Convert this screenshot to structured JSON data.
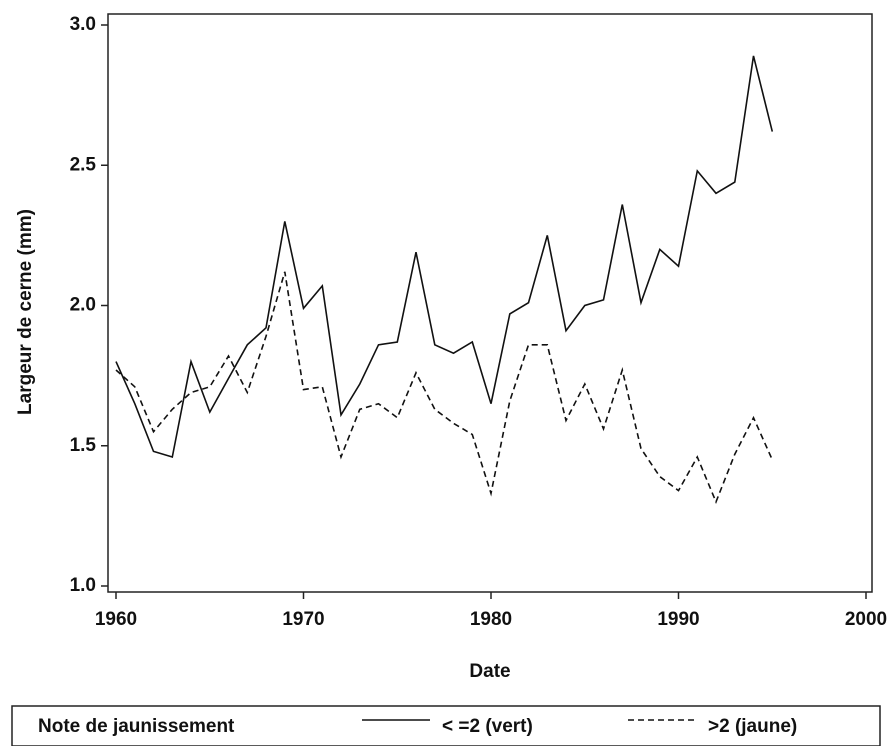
{
  "chart_data": {
    "type": "line",
    "x_label": "Date",
    "y_label": "Largeur de cerne (mm)",
    "legend_title": "Note de jaunissement",
    "x": [
      1960,
      1961,
      1962,
      1963,
      1964,
      1965,
      1966,
      1967,
      1968,
      1969,
      1970,
      1971,
      1972,
      1973,
      1974,
      1975,
      1976,
      1977,
      1978,
      1979,
      1980,
      1981,
      1982,
      1983,
      1984,
      1985,
      1986,
      1987,
      1988,
      1989,
      1990,
      1991,
      1992,
      1993,
      1994,
      1995
    ],
    "series": [
      {
        "name": "< =2 (vert)",
        "color": "#111111",
        "line_style": "solid",
        "values": [
          1.8,
          1.65,
          1.48,
          1.46,
          1.8,
          1.62,
          1.74,
          1.86,
          1.92,
          2.3,
          1.99,
          2.07,
          1.61,
          1.72,
          1.86,
          1.87,
          2.19,
          1.86,
          1.83,
          1.87,
          1.65,
          1.97,
          2.01,
          2.25,
          1.91,
          2.0,
          2.02,
          2.36,
          2.01,
          2.2,
          2.14,
          2.48,
          2.4,
          2.44,
          2.89,
          2.62
        ]
      },
      {
        "name": ">2 (jaune)",
        "color": "#111111",
        "line_style": "dashed",
        "values": [
          1.77,
          1.71,
          1.55,
          1.63,
          1.69,
          1.71,
          1.82,
          1.69,
          1.89,
          2.12,
          1.7,
          1.71,
          1.46,
          1.63,
          1.65,
          1.6,
          1.76,
          1.63,
          1.58,
          1.54,
          1.33,
          1.66,
          1.86,
          1.86,
          1.59,
          1.72,
          1.56,
          1.77,
          1.49,
          1.39,
          1.34,
          1.46,
          1.3,
          1.47,
          1.6,
          1.45
        ]
      }
    ],
    "xlim": [
      1960,
      2000
    ],
    "xticks": [
      1960,
      1970,
      1980,
      1990,
      2000
    ],
    "ylim": [
      1,
      3
    ],
    "yticks": [
      {
        "value": 1,
        "label": "1.0"
      },
      1.5,
      {
        "value": 2,
        "label": "2.0"
      },
      2.5,
      {
        "value": 3,
        "label": "3.0"
      }
    ],
    "grid": false
  }
}
